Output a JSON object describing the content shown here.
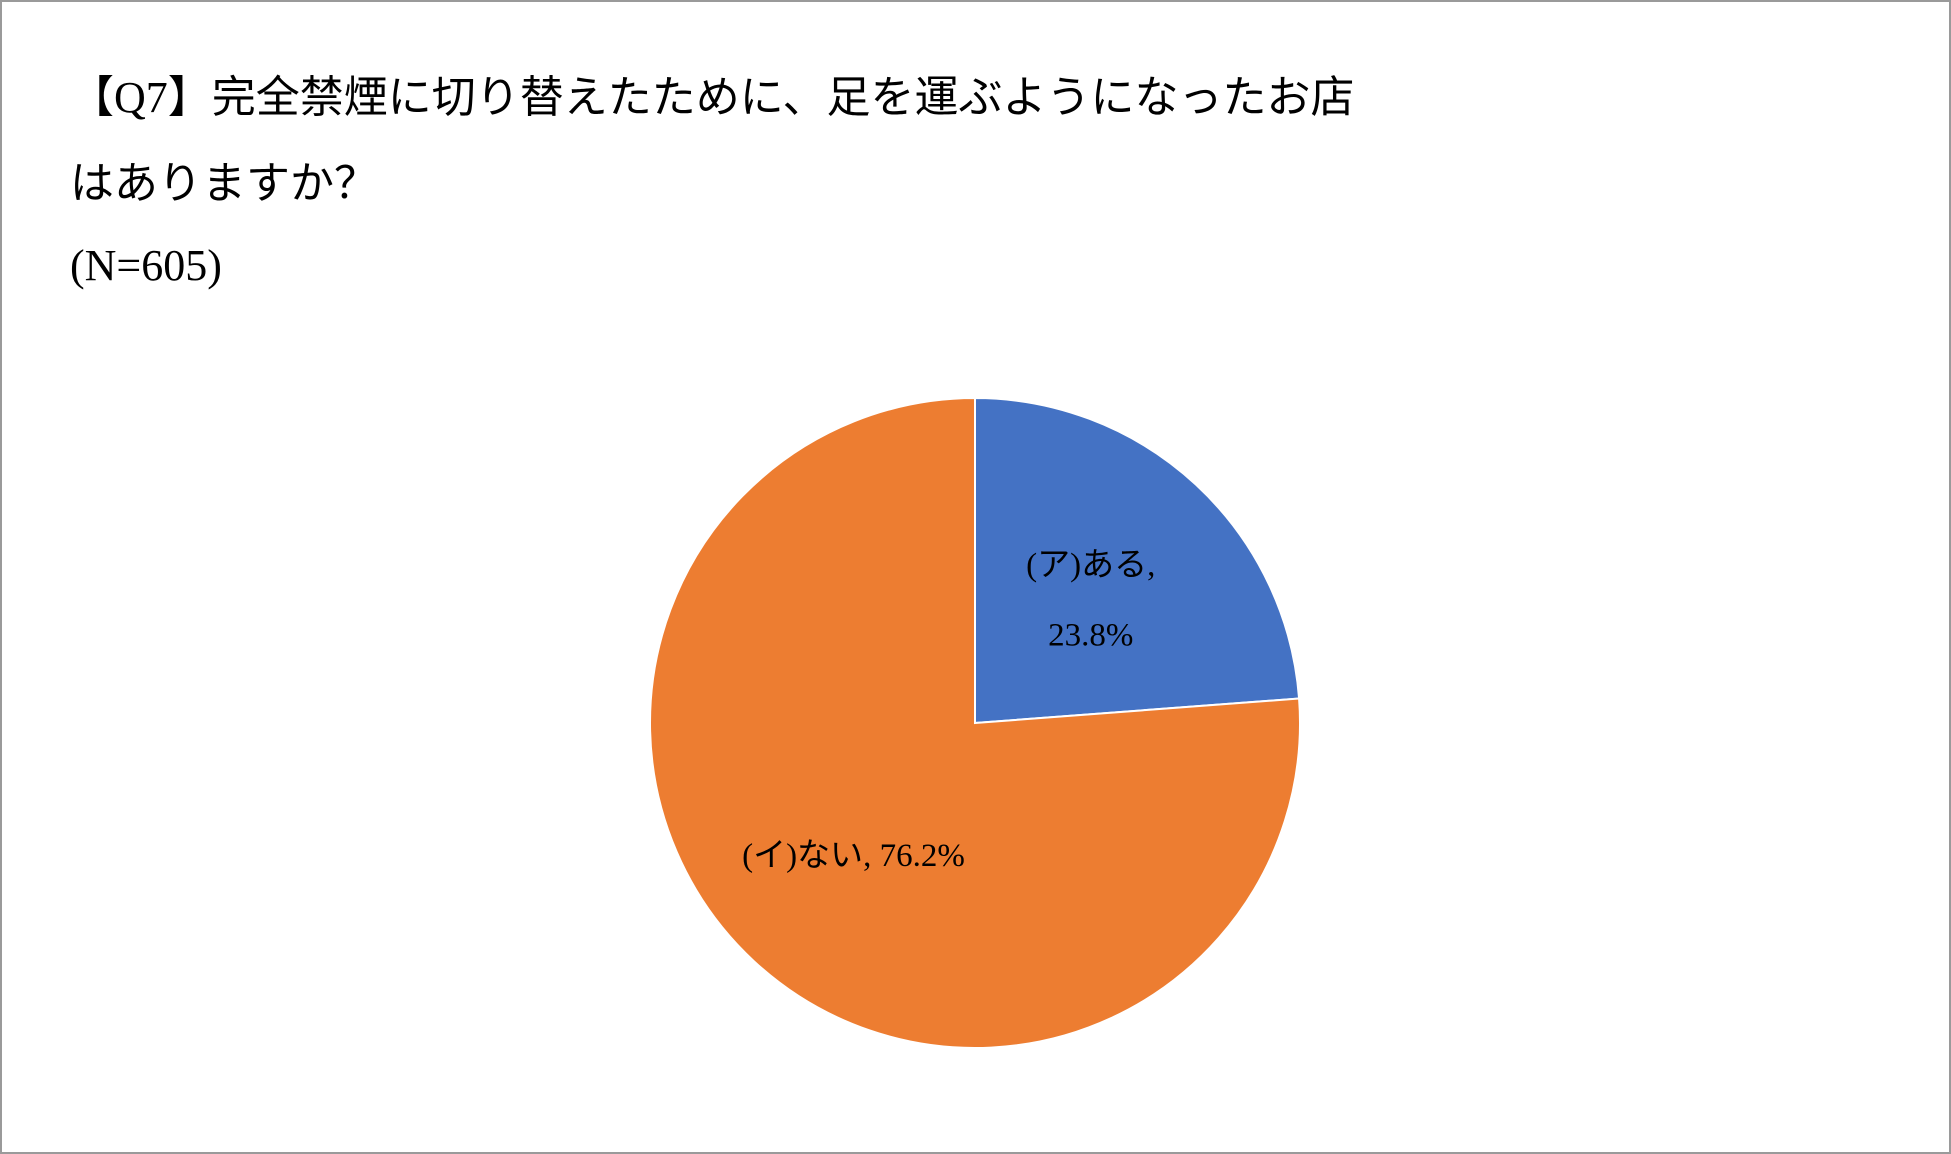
{
  "chart_data": {
    "type": "pie",
    "title": [
      "【Q7】完全禁煙に切り替えたために、足を運ぶようになったお店",
      "はありますか？"
    ],
    "subtitle": "(N=605)",
    "categories": [
      "(ア)ある",
      "(イ)ない"
    ],
    "values": [
      23.8,
      76.2
    ],
    "value_labels": [
      "23.8%",
      "76.2%"
    ],
    "label_separator": ", ",
    "colors": [
      "#4472c4",
      "#ed7d31"
    ]
  }
}
